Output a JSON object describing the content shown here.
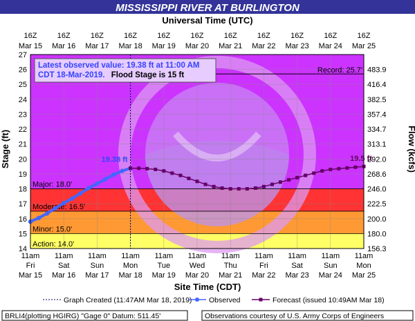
{
  "chart_data": {
    "type": "line",
    "title": "MISSISSIPPI RIVER AT BURLINGTON",
    "top_axis_title": "Universal Time (UTC)",
    "xlabel": "Site Time (CDT)",
    "ylabel": "Stage (ft)",
    "y2label": "Flow (kcfs)",
    "ylim": [
      14,
      27
    ],
    "grid": true,
    "yticks": [
      "14",
      "15",
      "16",
      "17",
      "18",
      "19",
      "20",
      "21",
      "22",
      "23",
      "24",
      "25",
      "26",
      "27"
    ],
    "y2ticks": [
      "156.3",
      "180.0",
      "200.0",
      "222.5",
      "246.0",
      "268.6",
      "292.0",
      "313.1",
      "334.7",
      "357.4",
      "382.5",
      "416.4",
      "483.9"
    ],
    "top_ticks": [
      {
        "time": "16Z",
        "date": "Mar 15"
      },
      {
        "time": "16Z",
        "date": "Mar 16"
      },
      {
        "time": "16Z",
        "date": "Mar 17"
      },
      {
        "time": "16Z",
        "date": "Mar 18"
      },
      {
        "time": "16Z",
        "date": "Mar 19"
      },
      {
        "time": "16Z",
        "date": "Mar 20"
      },
      {
        "time": "16Z",
        "date": "Mar 21"
      },
      {
        "time": "16Z",
        "date": "Mar 22"
      },
      {
        "time": "16Z",
        "date": "Mar 23"
      },
      {
        "time": "16Z",
        "date": "Mar 24"
      },
      {
        "time": "16Z",
        "date": "Mar 25"
      }
    ],
    "bottom_ticks": [
      {
        "time": "11am",
        "day": "Fri",
        "date": "Mar 15"
      },
      {
        "time": "11am",
        "day": "Sat",
        "date": "Mar 16"
      },
      {
        "time": "11am",
        "day": "Sun",
        "date": "Mar 17"
      },
      {
        "time": "11am",
        "day": "Mon",
        "date": "Mar 18"
      },
      {
        "time": "11am",
        "day": "Tue",
        "date": "Mar 19"
      },
      {
        "time": "11am",
        "day": "Wed",
        "date": "Mar 20"
      },
      {
        "time": "11am",
        "day": "Thu",
        "date": "Mar 21"
      },
      {
        "time": "11am",
        "day": "Fri",
        "date": "Mar 22"
      },
      {
        "time": "11am",
        "day": "Sat",
        "date": "Mar 23"
      },
      {
        "time": "11am",
        "day": "Sun",
        "date": "Mar 24"
      },
      {
        "time": "11am",
        "day": "Mon",
        "date": "Mar 25"
      }
    ],
    "flood_categories": [
      {
        "label": "Action: 14.0'",
        "from": 14.0,
        "to": 15.0,
        "color": "#ffff66"
      },
      {
        "label": "Minor: 15.0'",
        "from": 15.0,
        "to": 16.5,
        "color": "#ff9933"
      },
      {
        "label": "Moderate: 16.5'",
        "from": 16.5,
        "to": 18.0,
        "color": "#ff3333"
      },
      {
        "label": "Major: 18.0'",
        "from": 18.0,
        "to": 27.0,
        "color": "#cc33ff"
      }
    ],
    "record": {
      "label": "Record: 25.7'",
      "value": 25.7
    },
    "series": [
      {
        "name": "Observed",
        "color": "#4466ff",
        "x": [
          0,
          0.25,
          0.5,
          0.75,
          1.0,
          1.25,
          1.5,
          1.75,
          2.0,
          2.25,
          2.5,
          2.75,
          3.0
        ],
        "values": [
          15.8,
          16.05,
          16.35,
          16.7,
          17.05,
          17.35,
          17.7,
          18.05,
          18.35,
          18.65,
          18.95,
          19.2,
          19.38
        ]
      },
      {
        "name": "Forecast",
        "color": "#660066",
        "x": [
          3.0,
          3.25,
          3.5,
          3.75,
          4.0,
          4.25,
          4.5,
          4.75,
          5.0,
          5.25,
          5.5,
          5.75,
          6.0,
          6.25,
          6.5,
          6.75,
          7.0,
          7.25,
          7.5,
          7.75,
          8.0,
          8.25,
          8.5,
          8.75,
          9.0,
          9.25,
          9.5,
          9.75,
          10.0
        ],
        "values": [
          19.38,
          19.38,
          19.35,
          19.3,
          19.2,
          19.05,
          18.9,
          18.7,
          18.5,
          18.3,
          18.15,
          18.05,
          18.0,
          18.0,
          18.0,
          18.05,
          18.15,
          18.3,
          18.45,
          18.6,
          18.75,
          18.9,
          19.05,
          19.2,
          19.3,
          19.35,
          19.4,
          19.45,
          19.5
        ]
      }
    ],
    "observed_label": "19.38 ft",
    "forecast_label": "19.5 ft",
    "created_x": 3.0,
    "info_box": {
      "line1": "Latest observed value: 19.38 ft at 11:00 AM",
      "line2_a": "CDT 18-Mar-2019.",
      "line2_b": "Flood Stage is 15 ft"
    },
    "legend": {
      "created": "Graph Created (11:47AM Mar 18, 2019)",
      "observed": "Observed",
      "forecast": "Forecast (issued 10:49AM Mar 18)"
    },
    "footer_left": "BRLI4(plotting HGIRG) \"Gage 0\" Datum: 511.45'",
    "footer_right": "Observations courtesy of U.S. Army Corps of Engineers"
  }
}
